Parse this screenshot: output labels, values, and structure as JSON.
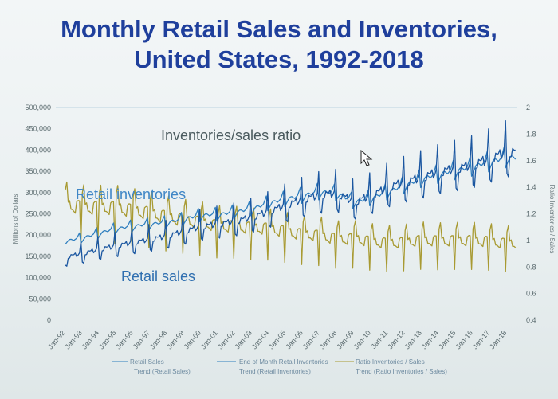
{
  "chart_data": {
    "type": "line",
    "title_lines": [
      "Monthly Retail Sales and Inventories,",
      "United States, 1992-2018"
    ],
    "ylabel": "Millions of Dollars",
    "y2label": "Ratio Inventories / Sales",
    "ylim": [
      0,
      500000
    ],
    "y2lim": [
      0.4,
      2
    ],
    "yticks": [
      "500,000",
      "450,000",
      "400,000",
      "350,000",
      "300,000",
      "250,000",
      "200,000",
      "150,000",
      "100,000",
      "50,000",
      "0"
    ],
    "y2ticks": [
      "2",
      "1.8",
      "1.6",
      "1.4",
      "1.2",
      "1",
      "0.8",
      "0.6",
      "0.4"
    ],
    "xticks": [
      "Jan-92",
      "Jan-93",
      "Jan-94",
      "Jan-95",
      "Jan-96",
      "Jan-97",
      "Jan-98",
      "Jan-99",
      "Jan-00",
      "Jan-01",
      "Jan-02",
      "Jan-03",
      "Jan-04",
      "Jan-05",
      "Jan-06",
      "Jan-07",
      "Jan-08",
      "Jan-09",
      "Jan-10",
      "Jan-11",
      "Jan-12",
      "Jan-13",
      "Jan-14",
      "Jan-15",
      "Jan-16",
      "Jan-17",
      "Jan-18"
    ],
    "years": [
      1992,
      1993,
      1994,
      1995,
      1996,
      1997,
      1998,
      1999,
      2000,
      2001,
      2002,
      2003,
      2004,
      2005,
      2006,
      2007,
      2008,
      2009,
      2010,
      2011,
      2012,
      2013,
      2014,
      2015,
      2016,
      2017,
      2018
    ],
    "series": [
      {
        "name": "Retail Sales",
        "axis": "left",
        "color": "#1a56a0",
        "annual": [
          147000,
          155000,
          165000,
          173000,
          181000,
          188000,
          196000,
          207000,
          218000,
          224000,
          230000,
          240000,
          253000,
          268000,
          281000,
          292000,
          296000,
          275000,
          290000,
          309000,
          322000,
          333000,
          345000,
          353000,
          362000,
          376000,
          392000
        ]
      },
      {
        "name": "End of Month Retail Inventories",
        "axis": "left",
        "color": "#2f7fbf",
        "annual": [
          186000,
          193000,
          205000,
          215000,
          221000,
          226000,
          230000,
          238000,
          247000,
          248000,
          254000,
          262000,
          275000,
          285000,
          293000,
          302000,
          298000,
          278000,
          287000,
          302000,
          317000,
          333000,
          343000,
          352000,
          361000,
          372000,
          382000
        ]
      },
      {
        "name": "Ratio Inventories / Sales",
        "axis": "right",
        "color": "#a89a32",
        "annual": [
          1.6,
          1.58,
          1.57,
          1.57,
          1.54,
          1.51,
          1.48,
          1.45,
          1.43,
          1.41,
          1.4,
          1.38,
          1.38,
          1.35,
          1.32,
          1.31,
          1.3,
          1.29,
          1.26,
          1.25,
          1.25,
          1.27,
          1.27,
          1.27,
          1.26,
          1.24,
          1.23
        ]
      }
    ],
    "trend_legend": [
      "Trend (Retail Sales)",
      "Trend (Retail Inventories)",
      "Trend (Ratio Inventories / Sales)"
    ],
    "annotations": [
      {
        "text": "Inventories/sales ratio",
        "color": "#4a5a5e"
      },
      {
        "text": "Retail inventories",
        "color": "#3f86c6"
      },
      {
        "text": "Retail sales",
        "color": "#2f6fb0"
      }
    ],
    "grid": "horizontal-top-only",
    "legend_position": "bottom"
  }
}
